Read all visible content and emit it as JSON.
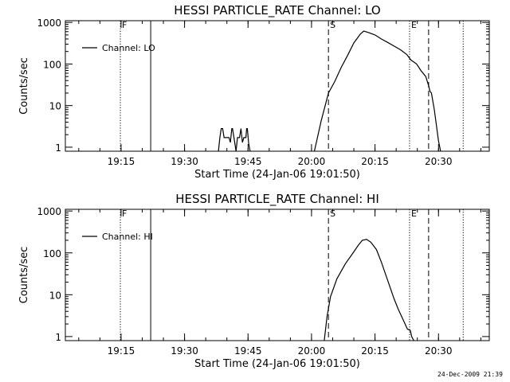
{
  "footer": {
    "date_stamp": "24-Dec-2009 21:39"
  },
  "chart_data": [
    {
      "type": "line",
      "title": "HESSI PARTICLE_RATE Channel: LO",
      "xlabel": "Start Time (24-Jan-06 19:01:50)",
      "ylabel": "Counts/sec",
      "x_ticks": [
        "19:15",
        "19:30",
        "19:45",
        "20:00",
        "20:15",
        "20:30"
      ],
      "y_ticks": [
        "1",
        "10",
        "100",
        "1000"
      ],
      "y_scale": "log",
      "xlim": [
        "19:01:50",
        "20:42:00"
      ],
      "ylim": [
        0.8,
        1100
      ],
      "legend": {
        "position": "top-left",
        "entries": [
          "Channel: LO"
        ]
      },
      "markers": [
        {
          "time": "19:14:50",
          "style": "dotted",
          "label": "F"
        },
        {
          "time": "19:22:00",
          "style": "solid",
          "label": ""
        },
        {
          "time": "20:04:00",
          "style": "dashed",
          "label": "S"
        },
        {
          "time": "20:23:10",
          "style": "dotted",
          "label": "E"
        },
        {
          "time": "20:27:40",
          "style": "dashed",
          "label": ""
        },
        {
          "time": "20:35:50",
          "style": "dotted",
          "label": ""
        }
      ],
      "series": [
        {
          "name": "Channel: LO",
          "segments": [
            [
              [
                "19:38:00",
                0.8
              ],
              [
                "19:38:20",
                1.7
              ],
              [
                "19:38:40",
                2.8
              ],
              [
                "19:39:00",
                2.8
              ],
              [
                "19:39:20",
                1.7
              ],
              [
                "19:40:30",
                1.7
              ],
              [
                "19:40:50",
                1.3
              ],
              [
                "19:41:10",
                2.8
              ],
              [
                "19:41:20",
                2.8
              ],
              [
                "19:41:40",
                1.7
              ],
              [
                "19:42:10",
                0.8
              ]
            ],
            [
              [
                "19:42:10",
                0.8
              ],
              [
                "19:42:30",
                1.7
              ],
              [
                "19:43:00",
                1.7
              ],
              [
                "19:43:20",
                2.8
              ],
              [
                "19:43:40",
                1.3
              ],
              [
                "19:44:00",
                1.7
              ],
              [
                "19:44:30",
                1.7
              ],
              [
                "19:44:40",
                2.8
              ],
              [
                "19:44:50",
                2.8
              ],
              [
                "19:45:10",
                1.2
              ],
              [
                "19:45:30",
                0.8
              ]
            ]
          ],
          "points": [
            [
              "20:00:40",
              0.8
            ],
            [
              "20:02:20",
              4.5
            ],
            [
              "20:04:00",
              20
            ],
            [
              "20:05:30",
              38
            ],
            [
              "20:07:00",
              82
            ],
            [
              "20:08:30",
              160
            ],
            [
              "20:10:00",
              320
            ],
            [
              "20:11:30",
              520
            ],
            [
              "20:12:20",
              620
            ],
            [
              "20:13:30",
              570
            ],
            [
              "20:15:00",
              500
            ],
            [
              "20:16:30",
              400
            ],
            [
              "20:18:00",
              330
            ],
            [
              "20:19:30",
              270
            ],
            [
              "20:21:00",
              220
            ],
            [
              "20:22:30",
              170
            ],
            [
              "20:23:30",
              125
            ],
            [
              "20:24:50",
              100
            ],
            [
              "20:25:50",
              70
            ],
            [
              "20:27:00",
              50
            ],
            [
              "20:27:40",
              30
            ],
            [
              "20:28:00",
              22
            ],
            [
              "20:28:20",
              20
            ],
            [
              "20:29:00",
              8
            ],
            [
              "20:30:00",
              1.4
            ],
            [
              "20:30:30",
              0.8
            ]
          ]
        }
      ]
    },
    {
      "type": "line",
      "title": "HESSI PARTICLE_RATE Channel: HI",
      "xlabel": "Start Time (24-Jan-06 19:01:50)",
      "ylabel": "Counts/sec",
      "x_ticks": [
        "19:15",
        "19:30",
        "19:45",
        "20:00",
        "20:15",
        "20:30"
      ],
      "y_ticks": [
        "1",
        "10",
        "100",
        "1000"
      ],
      "y_scale": "log",
      "xlim": [
        "19:01:50",
        "20:42:00"
      ],
      "ylim": [
        0.8,
        1100
      ],
      "legend": {
        "position": "top-left",
        "entries": [
          "Channel: HI"
        ]
      },
      "markers": [
        {
          "time": "19:14:50",
          "style": "dotted",
          "label": "F"
        },
        {
          "time": "19:22:00",
          "style": "solid",
          "label": ""
        },
        {
          "time": "20:04:00",
          "style": "dashed",
          "label": "S"
        },
        {
          "time": "20:23:10",
          "style": "dotted",
          "label": "E"
        },
        {
          "time": "20:27:40",
          "style": "dashed",
          "label": ""
        },
        {
          "time": "20:35:50",
          "style": "dotted",
          "label": ""
        }
      ],
      "series": [
        {
          "name": "Channel: HI",
          "segments": [],
          "points": [
            [
              "20:03:00",
              0.8
            ],
            [
              "20:03:40",
              3
            ],
            [
              "20:04:30",
              9
            ],
            [
              "20:06:00",
              24
            ],
            [
              "20:08:00",
              55
            ],
            [
              "20:09:40",
              95
            ],
            [
              "20:11:00",
              150
            ],
            [
              "20:12:00",
              200
            ],
            [
              "20:13:00",
              210
            ],
            [
              "20:14:00",
              180
            ],
            [
              "20:15:20",
              120
            ],
            [
              "20:16:30",
              60
            ],
            [
              "20:18:00",
              22
            ],
            [
              "20:19:30",
              8
            ],
            [
              "20:20:30",
              4.5
            ],
            [
              "20:21:40",
              2.5
            ],
            [
              "20:22:40",
              1.5
            ],
            [
              "20:23:20",
              1.4
            ],
            [
              "20:23:40",
              1
            ],
            [
              "20:24:10",
              0.8
            ]
          ]
        }
      ]
    }
  ]
}
